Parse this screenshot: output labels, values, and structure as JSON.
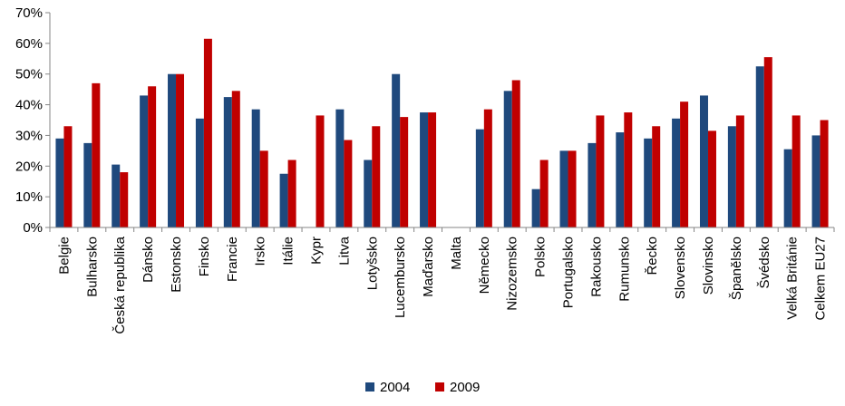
{
  "chart_data": {
    "type": "bar",
    "title": "",
    "xlabel": "",
    "ylabel": "",
    "ylim": [
      0,
      70
    ],
    "yticks": [
      "0%",
      "10%",
      "20%",
      "30%",
      "40%",
      "50%",
      "60%",
      "70%"
    ],
    "grid": false,
    "legend_position": "bottom",
    "categories": [
      "Belgie",
      "Bulharsko",
      "Česká republika",
      "Dánsko",
      "Estonsko",
      "Finsko",
      "Francie",
      "Irsko",
      "Itálie",
      "Kypr",
      "Litva",
      "Lotyšsko",
      "Lucembursko",
      "Maďarsko",
      "Malta",
      "Německo",
      "Nizozemsko",
      "Polsko",
      "Portugalsko",
      "Rakousko",
      "Rumunsko",
      "Řecko",
      "Slovensko",
      "Slovinsko",
      "Španělsko",
      "Švédsko",
      "Velká Británie",
      "Celkem EU27"
    ],
    "series": [
      {
        "name": "2004",
        "color": "#1F497D",
        "values": [
          29,
          27.5,
          20.5,
          43,
          50,
          35.5,
          42.5,
          38.5,
          17.5,
          null,
          38.5,
          22,
          50,
          37.5,
          null,
          32,
          44.5,
          12.5,
          25,
          27.5,
          31,
          29,
          35.5,
          43,
          33,
          52.5,
          25.5,
          30
        ]
      },
      {
        "name": "2009",
        "color": "#C00000",
        "values": [
          33,
          47,
          18,
          46,
          50,
          61.5,
          44.5,
          25,
          22,
          36.5,
          28.5,
          33,
          36,
          37.5,
          null,
          38.5,
          48,
          22,
          25,
          36.5,
          37.5,
          33,
          41,
          31.5,
          36.5,
          55.5,
          36.5,
          35
        ]
      }
    ]
  }
}
